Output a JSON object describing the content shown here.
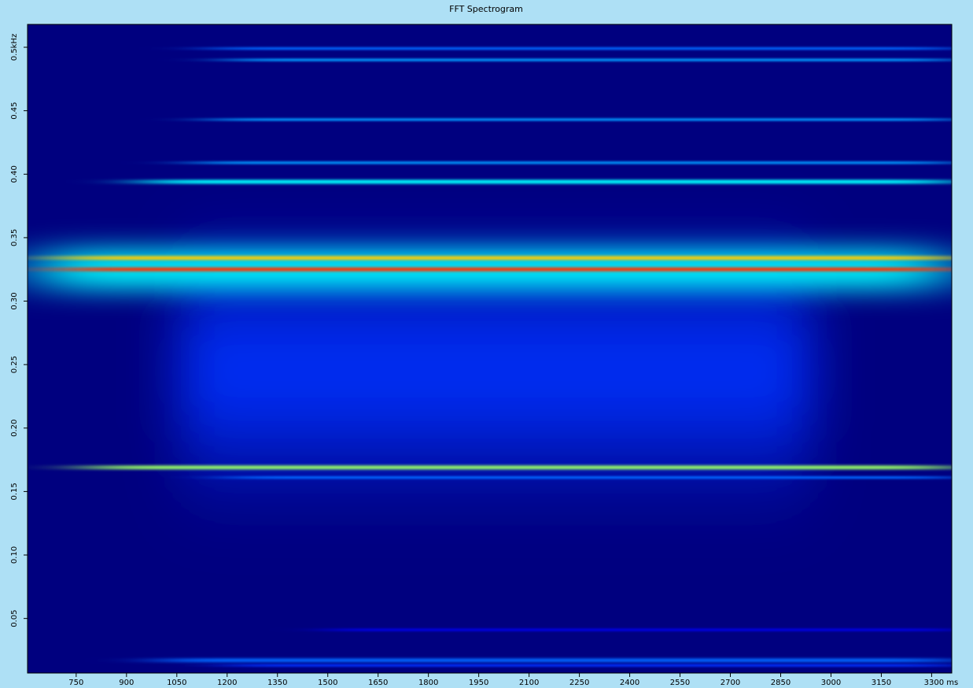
{
  "chart_data": {
    "type": "spectrogram",
    "title": "FFT Spectrogram",
    "xlim": [
      605,
      3360
    ],
    "ylim": [
      0.007,
      0.518
    ],
    "xticks": [
      750,
      900,
      1050,
      1200,
      1350,
      1500,
      1650,
      1800,
      1950,
      2100,
      2250,
      2400,
      2550,
      2700,
      2850,
      3000,
      3150,
      {
        "value": 3300,
        "label": "3300 ms"
      }
    ],
    "yticks": [
      0.05,
      {
        "value": 0.1,
        "label": "0.10"
      },
      0.15,
      {
        "value": 0.2,
        "label": "0.20"
      },
      0.25,
      {
        "value": 0.3,
        "label": "0.30"
      },
      0.35,
      {
        "value": 0.4,
        "label": "0.40"
      },
      0.45,
      {
        "value": 0.5,
        "label": "0.5kHz"
      }
    ],
    "background": "#00007f",
    "colormap": [
      "#00007f",
      "#0000ff",
      "#00ffff",
      "#ffff00",
      "#ff0000"
    ],
    "bands": {
      "freq": [
        0.245,
        0.325,
        0.499,
        0.49,
        0.443,
        0.409,
        0.394,
        0.334,
        0.325,
        0.169,
        0.161,
        0.041,
        0.017,
        0.013
      ],
      "width": [
        0.12,
        0.03,
        0.002,
        0.002,
        0.002,
        0.002,
        0.003,
        0.003,
        0.003,
        0.003,
        0.002,
        0.002,
        0.003,
        0.002
      ],
      "start": [
        1050,
        620,
        1150,
        1200,
        1150,
        1100,
        950,
        700,
        700,
        780,
        1200,
        1500,
        1000,
        1200
      ],
      "end": [
        2950,
        3360,
        3360,
        3360,
        3360,
        3360,
        3360,
        3360,
        3360,
        3360,
        3360,
        3360,
        3360,
        3360
      ],
      "level": [
        0.3,
        0.5,
        0.35,
        0.4,
        0.4,
        0.4,
        0.5,
        0.8,
        0.95,
        0.65,
        0.35,
        0.2,
        0.35,
        0.3
      ]
    }
  }
}
